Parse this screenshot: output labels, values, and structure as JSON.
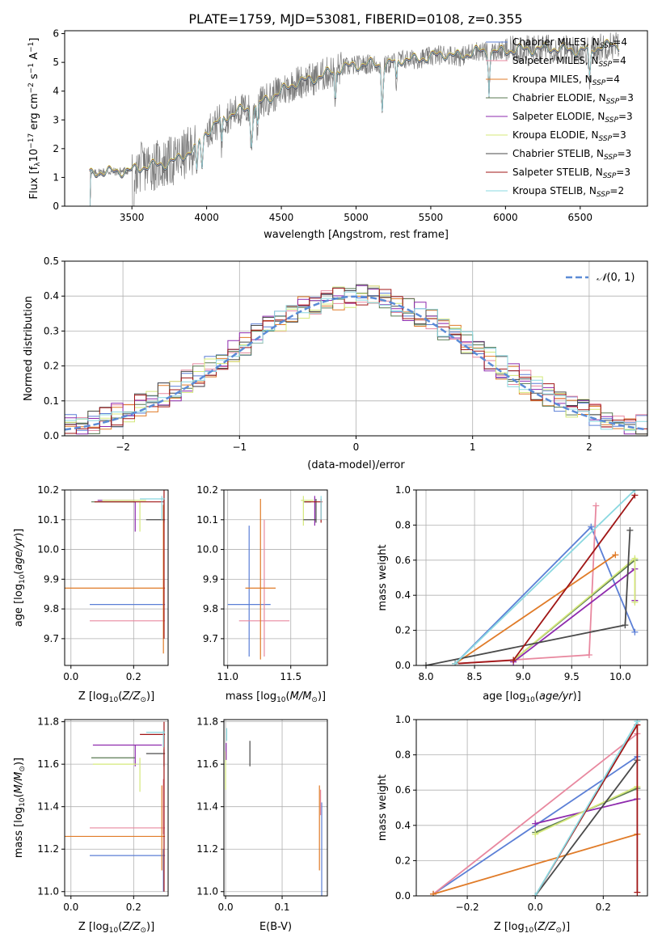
{
  "figure": {
    "title": "PLATE=1759, MJD=53081, FIBERID=0108, z=0.355"
  },
  "colors": {
    "Chabrier MILES": "#5b7fd6",
    "Salpeter MILES": "#e8889f",
    "Kroupa MILES": "#e07b28",
    "Chabrier ELODIE": "#5a7a52",
    "Salpeter ELODIE": "#8e2aad",
    "Kroupa ELODIE": "#d4e87a",
    "Chabrier STELIB": "#4a4a4a",
    "Salpeter STELIB": "#a01616",
    "Kroupa STELIB": "#8ad8e0",
    "data": "#7a7a7a",
    "normal": "#5b8bd6"
  },
  "chart_data": [
    {
      "id": "spectrum",
      "type": "line",
      "title": "PLATE=1759, MJD=53081, FIBERID=0108, z=0.355",
      "xlabel": "wavelength [Angstrom, rest frame]",
      "ylabel": "Flux [f_λ 10^-17 erg cm^-2 s^-1 A^-1]",
      "xlim": [
        3050,
        6950
      ],
      "ylim": [
        0,
        6.1
      ],
      "xticks": [
        3500,
        4000,
        4500,
        5000,
        5500,
        6000,
        6500
      ],
      "yticks": [
        0,
        1,
        2,
        3,
        4,
        5,
        6
      ],
      "grid": false,
      "legend_position": "top-right",
      "legend": [
        {
          "label": "Chabrier MILES, N",
          "sub": "SSP",
          "tail": "=4"
        },
        {
          "label": "Salpeter MILES, N",
          "sub": "SSP",
          "tail": "=4"
        },
        {
          "label": "Kroupa MILES, N",
          "sub": "SSP",
          "tail": "=4"
        },
        {
          "label": "Chabrier ELODIE, N",
          "sub": "SSP",
          "tail": "=3"
        },
        {
          "label": "Salpeter ELODIE, N",
          "sub": "SSP",
          "tail": "=3"
        },
        {
          "label": "Kroupa ELODIE, N",
          "sub": "SSP",
          "tail": "=3"
        },
        {
          "label": "Chabrier STELIB, N",
          "sub": "SSP",
          "tail": "=3"
        },
        {
          "label": "Salpeter STELIB, N",
          "sub": "SSP",
          "tail": "=3"
        },
        {
          "label": "Kroupa STELIB, N",
          "sub": "SSP",
          "tail": "=2"
        }
      ],
      "continuum": [
        [
          3220,
          1.1
        ],
        [
          3300,
          1.2
        ],
        [
          3400,
          1.2
        ],
        [
          3500,
          1.25
        ],
        [
          3600,
          1.4
        ],
        [
          3700,
          1.45
        ],
        [
          3800,
          1.6
        ],
        [
          3900,
          1.95
        ],
        [
          4000,
          2.6
        ],
        [
          4100,
          3.0
        ],
        [
          4200,
          3.3
        ],
        [
          4300,
          3.4
        ],
        [
          4400,
          3.7
        ],
        [
          4500,
          4.0
        ],
        [
          4600,
          4.3
        ],
        [
          4700,
          4.4
        ],
        [
          4800,
          4.6
        ],
        [
          4900,
          4.8
        ],
        [
          5000,
          4.9
        ],
        [
          5100,
          4.95
        ],
        [
          5200,
          4.9
        ],
        [
          5300,
          5.1
        ],
        [
          5400,
          5.1
        ],
        [
          5500,
          5.2
        ],
        [
          5600,
          5.3
        ],
        [
          5700,
          5.2
        ],
        [
          5800,
          5.4
        ],
        [
          5900,
          5.35
        ],
        [
          6000,
          5.4
        ],
        [
          6100,
          5.45
        ],
        [
          6200,
          5.45
        ],
        [
          6300,
          5.5
        ],
        [
          6400,
          5.45
        ],
        [
          6500,
          5.4
        ],
        [
          6600,
          5.5
        ],
        [
          6700,
          5.6
        ],
        [
          6760,
          5.6
        ]
      ]
    },
    {
      "id": "residuals",
      "type": "histogram",
      "xlabel": "(data-model)/error",
      "ylabel": "Normed distribution",
      "xlim": [
        -2.5,
        2.5
      ],
      "ylim": [
        0,
        0.5
      ],
      "xticks": [
        -2,
        -1,
        0,
        1,
        2
      ],
      "yticks": [
        0,
        0.1,
        0.2,
        0.3,
        0.4,
        0.5
      ],
      "grid": true,
      "legend_position": "top-right",
      "legend_label": "N(0, 1)",
      "bin_width": 0.1
    },
    {
      "id": "Z-age",
      "type": "errorbar",
      "xlabel": "Z [log10(Z/Z☉)]",
      "ylabel": "age  [log10(age/yr)]",
      "xlim": [
        -0.02,
        0.31
      ],
      "ylim": [
        9.61,
        10.2
      ],
      "xticks": [
        0.0,
        0.2
      ],
      "yticks": [
        9.7,
        9.8,
        9.9,
        10.0,
        10.1,
        10.2
      ],
      "grid": true,
      "points": [
        {
          "model": "Chabrier MILES",
          "x": 0.18,
          "xerr": 0.12,
          "y": 9.815,
          "yerr": 0.0
        },
        {
          "model": "Salpeter MILES",
          "x": 0.18,
          "xerr": 0.12,
          "y": 9.76,
          "yerr": 0.0
        },
        {
          "model": "Kroupa MILES",
          "x": 0.1,
          "xerr": 0.2,
          "y": 9.87,
          "yerr": 0.0
        },
        {
          "model": "Kroupa MILES",
          "x": 0.295,
          "xerr": 0.0,
          "y": 9.9,
          "yerr": 0.25
        },
        {
          "model": "Chabrier ELODIE",
          "x": 0.135,
          "xerr": 0.07,
          "y": 10.16,
          "yerr": 0.0
        },
        {
          "model": "Salpeter ELODIE",
          "x": 0.205,
          "xerr": 0.0,
          "y": 10.11,
          "yerr": 0.05
        },
        {
          "model": "Salpeter ELODIE",
          "x": 0.145,
          "xerr": 0.06,
          "y": 10.165,
          "yerr": 0.0
        },
        {
          "model": "Kroupa ELODIE",
          "x": 0.22,
          "xerr": 0.0,
          "y": 10.11,
          "yerr": 0.05
        },
        {
          "model": "Kroupa ELODIE",
          "x": 0.17,
          "xerr": 0.07,
          "y": 10.165,
          "yerr": 0.0
        },
        {
          "model": "Chabrier STELIB",
          "x": 0.27,
          "xerr": 0.03,
          "y": 10.1,
          "yerr": 0.0
        },
        {
          "model": "Chabrier STELIB",
          "x": 0.297,
          "xerr": 0.0,
          "y": 10.13,
          "yerr": 0.04
        },
        {
          "model": "Salpeter STELIB",
          "x": 0.297,
          "xerr": 0.0,
          "y": 9.95,
          "yerr": 0.25
        },
        {
          "model": "Salpeter STELIB",
          "x": 0.185,
          "xerr": 0.11,
          "y": 10.16,
          "yerr": 0.0
        },
        {
          "model": "Kroupa STELIB",
          "x": 0.26,
          "xerr": 0.04,
          "y": 10.17,
          "yerr": 0.0
        },
        {
          "model": "Kroupa STELIB",
          "x": 0.29,
          "xerr": 0.0,
          "y": 10.14,
          "yerr": 0.04
        }
      ]
    },
    {
      "id": "mass-age",
      "type": "errorbar",
      "xlabel": "mass [log10(M/M☉)]",
      "ylabel": "",
      "xlim": [
        10.97,
        11.79
      ],
      "ylim": [
        9.61,
        10.2
      ],
      "xticks": [
        11.0,
        11.5
      ],
      "yticks": [
        9.7,
        9.8,
        9.9,
        10.0,
        10.1,
        10.2
      ],
      "grid": true,
      "points": [
        {
          "model": "Chabrier MILES",
          "x": 11.17,
          "xerr": 0.17,
          "y": 9.815,
          "yerr": 0.0
        },
        {
          "model": "Chabrier MILES",
          "x": 11.17,
          "xerr": 0.0,
          "y": 9.86,
          "yerr": 0.22
        },
        {
          "model": "Salpeter MILES",
          "x": 11.29,
          "xerr": 0.2,
          "y": 9.76,
          "yerr": 0.0
        },
        {
          "model": "Salpeter MILES",
          "x": 11.29,
          "xerr": 0.0,
          "y": 9.87,
          "yerr": 0.23
        },
        {
          "model": "Kroupa MILES",
          "x": 11.26,
          "xerr": 0.12,
          "y": 9.87,
          "yerr": 0.0
        },
        {
          "model": "Kroupa MILES",
          "x": 11.26,
          "xerr": 0.0,
          "y": 9.9,
          "yerr": 0.27
        },
        {
          "model": "Chabrier ELODIE",
          "x": 11.63,
          "xerr": 0.03,
          "y": 10.16,
          "yerr": 0.0
        },
        {
          "model": "Salpeter ELODIE",
          "x": 11.69,
          "xerr": 0.0,
          "y": 10.13,
          "yerr": 0.05
        },
        {
          "model": "Kroupa ELODIE",
          "x": 11.6,
          "xerr": 0.0,
          "y": 10.13,
          "yerr": 0.05
        },
        {
          "model": "Kroupa ELODIE",
          "x": 11.63,
          "xerr": 0.05,
          "y": 10.165,
          "yerr": 0.0
        },
        {
          "model": "Chabrier STELIB",
          "x": 11.65,
          "xerr": 0.05,
          "y": 10.1,
          "yerr": 0.0
        },
        {
          "model": "Chabrier STELIB",
          "x": 11.7,
          "xerr": 0.0,
          "y": 10.13,
          "yerr": 0.04
        },
        {
          "model": "Salpeter STELIB",
          "x": 11.74,
          "xerr": 0.0,
          "y": 10.13,
          "yerr": 0.04
        },
        {
          "model": "Salpeter STELIB",
          "x": 11.68,
          "xerr": 0.07,
          "y": 10.16,
          "yerr": 0.0
        },
        {
          "model": "Kroupa STELIB",
          "x": 11.74,
          "xerr": 0.0,
          "y": 10.14,
          "yerr": 0.04
        }
      ]
    },
    {
      "id": "age-weight",
      "type": "line",
      "xlabel": "age  [log10(age/yr)]",
      "ylabel": "mass weight",
      "xlim": [
        7.9,
        10.28
      ],
      "ylim": [
        0,
        1.0
      ],
      "xticks": [
        8.0,
        8.5,
        9.0,
        9.5,
        10.0
      ],
      "yticks": [
        0.0,
        0.2,
        0.4,
        0.6,
        0.8,
        1.0
      ],
      "grid": true,
      "series": [
        {
          "model": "Chabrier MILES",
          "x": [
            8.3,
            9.7,
            10.15
          ],
          "y": [
            0.01,
            0.79,
            0.19
          ]
        },
        {
          "model": "Salpeter MILES",
          "x": [
            8.3,
            9.68,
            9.75
          ],
          "y": [
            0.01,
            0.06,
            0.91
          ]
        },
        {
          "model": "Kroupa MILES",
          "x": [
            8.3,
            9.95
          ],
          "y": [
            0.01,
            0.63
          ]
        },
        {
          "model": "Chabrier ELODIE",
          "x": [
            8.9,
            10.15
          ],
          "y": [
            0.03,
            0.6
          ]
        },
        {
          "model": "Salpeter ELODIE",
          "x": [
            8.9,
            10.15,
            10.15
          ],
          "y": [
            0.02,
            0.55,
            0.37
          ]
        },
        {
          "model": "Kroupa ELODIE",
          "x": [
            8.9,
            10.15,
            10.15
          ],
          "y": [
            0.03,
            0.61,
            0.36
          ]
        },
        {
          "model": "Chabrier STELIB",
          "x": [
            8.0,
            10.05,
            10.1
          ],
          "y": [
            0.0,
            0.23,
            0.77
          ]
        },
        {
          "model": "Salpeter STELIB",
          "x": [
            8.3,
            8.9,
            10.15
          ],
          "y": [
            0.01,
            0.03,
            0.97
          ]
        },
        {
          "model": "Kroupa STELIB",
          "x": [
            8.3,
            10.15
          ],
          "y": [
            0.01,
            1.0
          ]
        }
      ]
    },
    {
      "id": "Z-mass",
      "type": "errorbar",
      "xlabel": "Z [log10(Z/Z☉)]",
      "ylabel": "mass [log10(M/M☉)]",
      "xlim": [
        -0.02,
        0.31
      ],
      "ylim": [
        10.98,
        11.81
      ],
      "xticks": [
        0.0,
        0.2
      ],
      "yticks": [
        11.0,
        11.2,
        11.4,
        11.6,
        11.8
      ],
      "grid": true,
      "points": [
        {
          "model": "Chabrier MILES",
          "x": 0.18,
          "xerr": 0.12,
          "y": 11.17,
          "yerr": 0.0
        },
        {
          "model": "Chabrier MILES",
          "x": 0.295,
          "xerr": 0.0,
          "y": 11.1,
          "yerr": 0.1
        },
        {
          "model": "Salpeter MILES",
          "x": 0.18,
          "xerr": 0.12,
          "y": 11.3,
          "yerr": 0.0
        },
        {
          "model": "Salpeter MILES",
          "x": 0.295,
          "xerr": 0.0,
          "y": 11.4,
          "yerr": 0.13
        },
        {
          "model": "Kroupa MILES",
          "x": 0.1,
          "xerr": 0.2,
          "y": 11.26,
          "yerr": 0.0
        },
        {
          "model": "Kroupa MILES",
          "x": 0.29,
          "xerr": 0.0,
          "y": 11.3,
          "yerr": 0.2
        },
        {
          "model": "Chabrier ELODIE",
          "x": 0.135,
          "xerr": 0.07,
          "y": 11.63,
          "yerr": 0.0
        },
        {
          "model": "Salpeter ELODIE",
          "x": 0.205,
          "xerr": 0.0,
          "y": 11.64,
          "yerr": 0.05
        },
        {
          "model": "Salpeter ELODIE",
          "x": 0.18,
          "xerr": 0.11,
          "y": 11.69,
          "yerr": 0.0
        },
        {
          "model": "Kroupa ELODIE",
          "x": 0.22,
          "xerr": 0.0,
          "y": 11.55,
          "yerr": 0.08
        },
        {
          "model": "Kroupa ELODIE",
          "x": 0.14,
          "xerr": 0.07,
          "y": 11.6,
          "yerr": 0.0
        },
        {
          "model": "Chabrier STELIB",
          "x": 0.27,
          "xerr": 0.03,
          "y": 11.65,
          "yerr": 0.0
        },
        {
          "model": "Chabrier STELIB",
          "x": 0.297,
          "xerr": 0.0,
          "y": 11.63,
          "yerr": 0.04
        },
        {
          "model": "Salpeter STELIB",
          "x": 0.297,
          "xerr": 0.0,
          "y": 11.4,
          "yerr": 0.4
        },
        {
          "model": "Salpeter STELIB",
          "x": 0.26,
          "xerr": 0.04,
          "y": 11.74,
          "yerr": 0.0
        },
        {
          "model": "Kroupa STELIB",
          "x": 0.27,
          "xerr": 0.03,
          "y": 11.75,
          "yerr": 0.0
        },
        {
          "model": "Kroupa STELIB",
          "x": 0.295,
          "xerr": 0.0,
          "y": 11.72,
          "yerr": 0.04
        }
      ]
    },
    {
      "id": "EBV-mass",
      "type": "errorbar",
      "xlabel": "E(B-V)",
      "ylabel": "",
      "xlim": [
        -0.003,
        0.18
      ],
      "ylim": [
        10.98,
        11.81
      ],
      "xticks": [
        0.0,
        0.1
      ],
      "yticks": [
        11.0,
        11.2,
        11.4,
        11.6,
        11.8
      ],
      "grid": true,
      "points": [
        {
          "model": "Chabrier MILES",
          "x": 0.17,
          "xerr": 0.0,
          "y": 11.2,
          "yerr": 0.22
        },
        {
          "model": "Kroupa MILES",
          "x": 0.166,
          "xerr": 0.0,
          "y": 11.3,
          "yerr": 0.2
        },
        {
          "model": "Salpeter MILES",
          "x": 0.168,
          "xerr": 0.0,
          "y": 11.42,
          "yerr": 0.06
        },
        {
          "model": "Chabrier STELIB",
          "x": 0.043,
          "xerr": 0.0,
          "y": 11.65,
          "yerr": 0.06
        },
        {
          "model": "Kroupa ELODIE",
          "x": 0.0,
          "xerr": 0.0,
          "y": 11.57,
          "yerr": 0.09
        },
        {
          "model": "Salpeter ELODIE",
          "x": 0.001,
          "xerr": 0.0,
          "y": 11.66,
          "yerr": 0.04
        },
        {
          "model": "Kroupa STELIB",
          "x": 0.002,
          "xerr": 0.0,
          "y": 11.74,
          "yerr": 0.03
        }
      ]
    },
    {
      "id": "Z-weight",
      "type": "line",
      "xlabel": "Z [log10(Z/Z☉)]",
      "ylabel": "mass weight",
      "xlim": [
        -0.35,
        0.33
      ],
      "ylim": [
        0,
        1.0
      ],
      "xticks": [
        -0.2,
        0.0,
        0.2
      ],
      "yticks": [
        0.0,
        0.2,
        0.4,
        0.6,
        0.8,
        1.0
      ],
      "grid": true,
      "series": [
        {
          "model": "Chabrier MILES",
          "x": [
            -0.3,
            0.3
          ],
          "y": [
            0.01,
            0.79
          ]
        },
        {
          "model": "Salpeter MILES",
          "x": [
            -0.3,
            0.3
          ],
          "y": [
            0.01,
            0.92
          ]
        },
        {
          "model": "Kroupa MILES",
          "x": [
            -0.3,
            0.3
          ],
          "y": [
            0.01,
            0.35
          ]
        },
        {
          "model": "Chabrier ELODIE",
          "x": [
            0.0,
            0.3
          ],
          "y": [
            0.36,
            0.61
          ]
        },
        {
          "model": "Salpeter ELODIE",
          "x": [
            0.0,
            0.3
          ],
          "y": [
            0.41,
            0.55
          ]
        },
        {
          "model": "Kroupa ELODIE",
          "x": [
            0.0,
            0.3
          ],
          "y": [
            0.35,
            0.62
          ]
        },
        {
          "model": "Chabrier STELIB",
          "x": [
            0.0,
            0.3
          ],
          "y": [
            0.0,
            0.77
          ]
        },
        {
          "model": "Salpeter STELIB",
          "x": [
            0.0,
            0.3,
            0.3
          ],
          "y": [
            0.0,
            0.97,
            0.02
          ]
        },
        {
          "model": "Kroupa STELIB",
          "x": [
            0.0,
            0.3
          ],
          "y": [
            0.0,
            0.99
          ]
        }
      ]
    }
  ]
}
